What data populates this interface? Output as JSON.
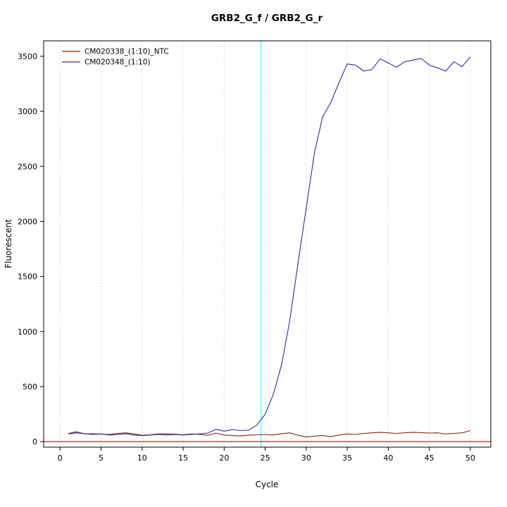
{
  "chart_data": {
    "type": "line",
    "title": "GRB2_G_f / GRB2_G_r",
    "xlabel": "Cycle",
    "ylabel": "Fluorescent",
    "xlim": [
      -2,
      52.5
    ],
    "ylim": [
      -50,
      3640
    ],
    "xticks": [
      0,
      5,
      10,
      15,
      20,
      25,
      30,
      35,
      40,
      45,
      50
    ],
    "yticks": [
      0,
      500,
      1000,
      1500,
      2000,
      2500,
      3000,
      3500
    ],
    "grid": true,
    "legend_position": "top-left",
    "threshold_line": {
      "orientation": "vertical",
      "x": 24.5,
      "color": "#00ffff"
    },
    "baseline": {
      "orientation": "horizontal",
      "y": 0,
      "color": "#8b0000"
    },
    "x": [
      1,
      2,
      3,
      4,
      5,
      6,
      7,
      8,
      9,
      10,
      11,
      12,
      13,
      14,
      15,
      16,
      17,
      18,
      19,
      20,
      21,
      22,
      23,
      24,
      25,
      26,
      27,
      28,
      29,
      30,
      31,
      32,
      33,
      34,
      35,
      36,
      37,
      38,
      39,
      40,
      41,
      42,
      43,
      44,
      45,
      46,
      47,
      48,
      49,
      50
    ],
    "series": [
      {
        "name": "CM020338_(1:10)_NTC",
        "color": "#8b2323",
        "values": [
          75,
          90,
          70,
          72,
          68,
          65,
          75,
          80,
          70,
          58,
          62,
          70,
          72,
          68,
          62,
          70,
          65,
          58,
          78,
          60,
          55,
          52,
          58,
          62,
          65,
          60,
          72,
          80,
          58,
          42,
          50,
          55,
          45,
          60,
          70,
          65,
          75,
          80,
          85,
          80,
          75,
          80,
          85,
          82,
          78,
          80,
          68,
          75,
          80,
          100
        ]
      },
      {
        "name": "CM020348_(1:10)",
        "color": "#2c318c",
        "values": [
          70,
          80,
          72,
          66,
          70,
          60,
          66,
          72,
          60,
          55,
          60,
          66,
          60,
          66,
          60,
          65,
          70,
          78,
          112,
          95,
          110,
          100,
          105,
          150,
          250,
          430,
          700,
          1100,
          1620,
          2120,
          2620,
          2950,
          3080,
          3260,
          3430,
          3420,
          3365,
          3380,
          3475,
          3440,
          3400,
          3450,
          3465,
          3480,
          3420,
          3395,
          3365,
          3450,
          3405,
          3495
        ]
      }
    ]
  }
}
